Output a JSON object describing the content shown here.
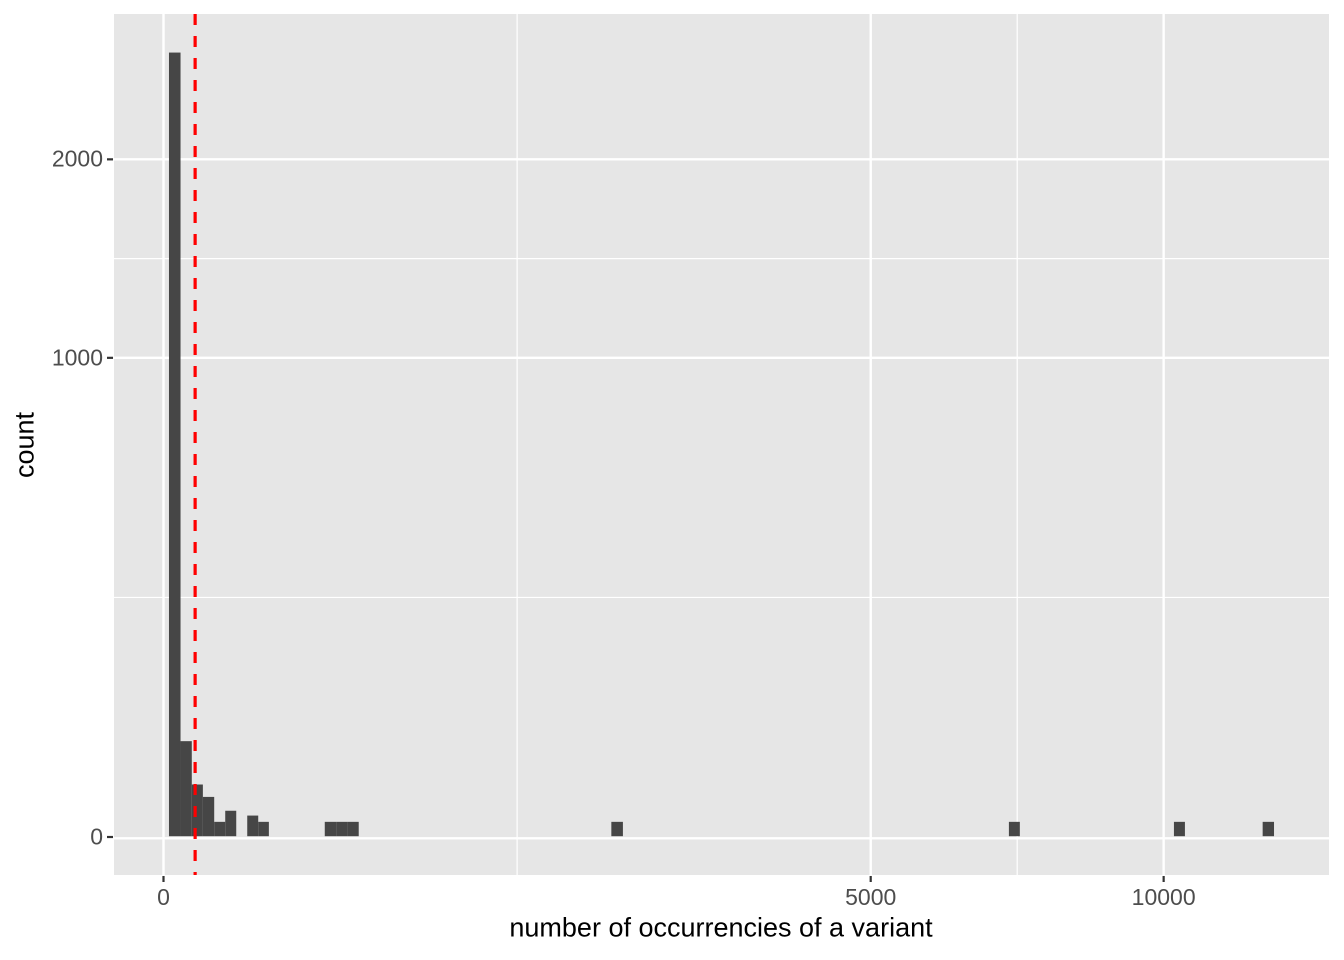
{
  "figure": {
    "kind": "ggplot-histogram",
    "background": "#ffffff"
  },
  "style": {
    "panel_background": "#e6e6e6",
    "grid_color": "#ffffff",
    "bar_color": "#464646",
    "vline_color": "#ff0000",
    "tick_mark_color": "#333333",
    "tick_label_color": "#4d4d4d",
    "axis_title_color": "#000000"
  },
  "chart_data": {
    "type": "bar",
    "subtype": "histogram",
    "title": "",
    "xlabel": "number of occurrencies of a variant",
    "ylabel": "count",
    "x_scale": "sqrt",
    "y_scale": "sqrt",
    "x_domain": [
      0,
      13580
    ],
    "y_domain": [
      0,
      2950
    ],
    "x_axis": {
      "ticks": [
        {
          "value": 0,
          "label": "0"
        },
        {
          "value": 5000,
          "label": "5000"
        },
        {
          "value": 10000,
          "label": "10000"
        }
      ],
      "minor_breaks": [
        1250,
        7286
      ]
    },
    "y_axis": {
      "ticks": [
        {
          "value": 0,
          "label": "0"
        },
        {
          "value": 1000,
          "label": "1000"
        },
        {
          "value": 2000,
          "label": "2000"
        }
      ],
      "minor_breaks": [
        250,
        1457
      ]
    },
    "bins": [
      {
        "x0": 0.3,
        "x1": 2.9,
        "count": 2680
      },
      {
        "x0": 2.9,
        "x1": 8.0,
        "count": 40
      },
      {
        "x0": 8.0,
        "x1": 15.5,
        "count": 12
      },
      {
        "x0": 15.5,
        "x1": 25.7,
        "count": 7
      },
      {
        "x0": 25.7,
        "x1": 38.1,
        "count": 1
      },
      {
        "x0": 38.1,
        "x1": 52.9,
        "count": 3
      },
      {
        "x0": 70.1,
        "x1": 89.7,
        "count": 2
      },
      {
        "x0": 89.7,
        "x1": 111.0,
        "count": 1
      },
      {
        "x0": 260.0,
        "x1": 298.0,
        "count": 1
      },
      {
        "x0": 298.0,
        "x1": 338.0,
        "count": 1
      },
      {
        "x0": 338.0,
        "x1": 381.0,
        "count": 1
      },
      {
        "x0": 2005.0,
        "x1": 2110.0,
        "count": 1
      },
      {
        "x0": 7145.0,
        "x1": 7331.0,
        "count": 1
      },
      {
        "x0": 10207.0,
        "x1": 10430.0,
        "count": 1
      },
      {
        "x0": 12078.0,
        "x1": 12329.0,
        "count": 1
      }
    ],
    "vline": {
      "x": 10,
      "style": "dashed"
    },
    "legend": "none",
    "grid": "on"
  }
}
